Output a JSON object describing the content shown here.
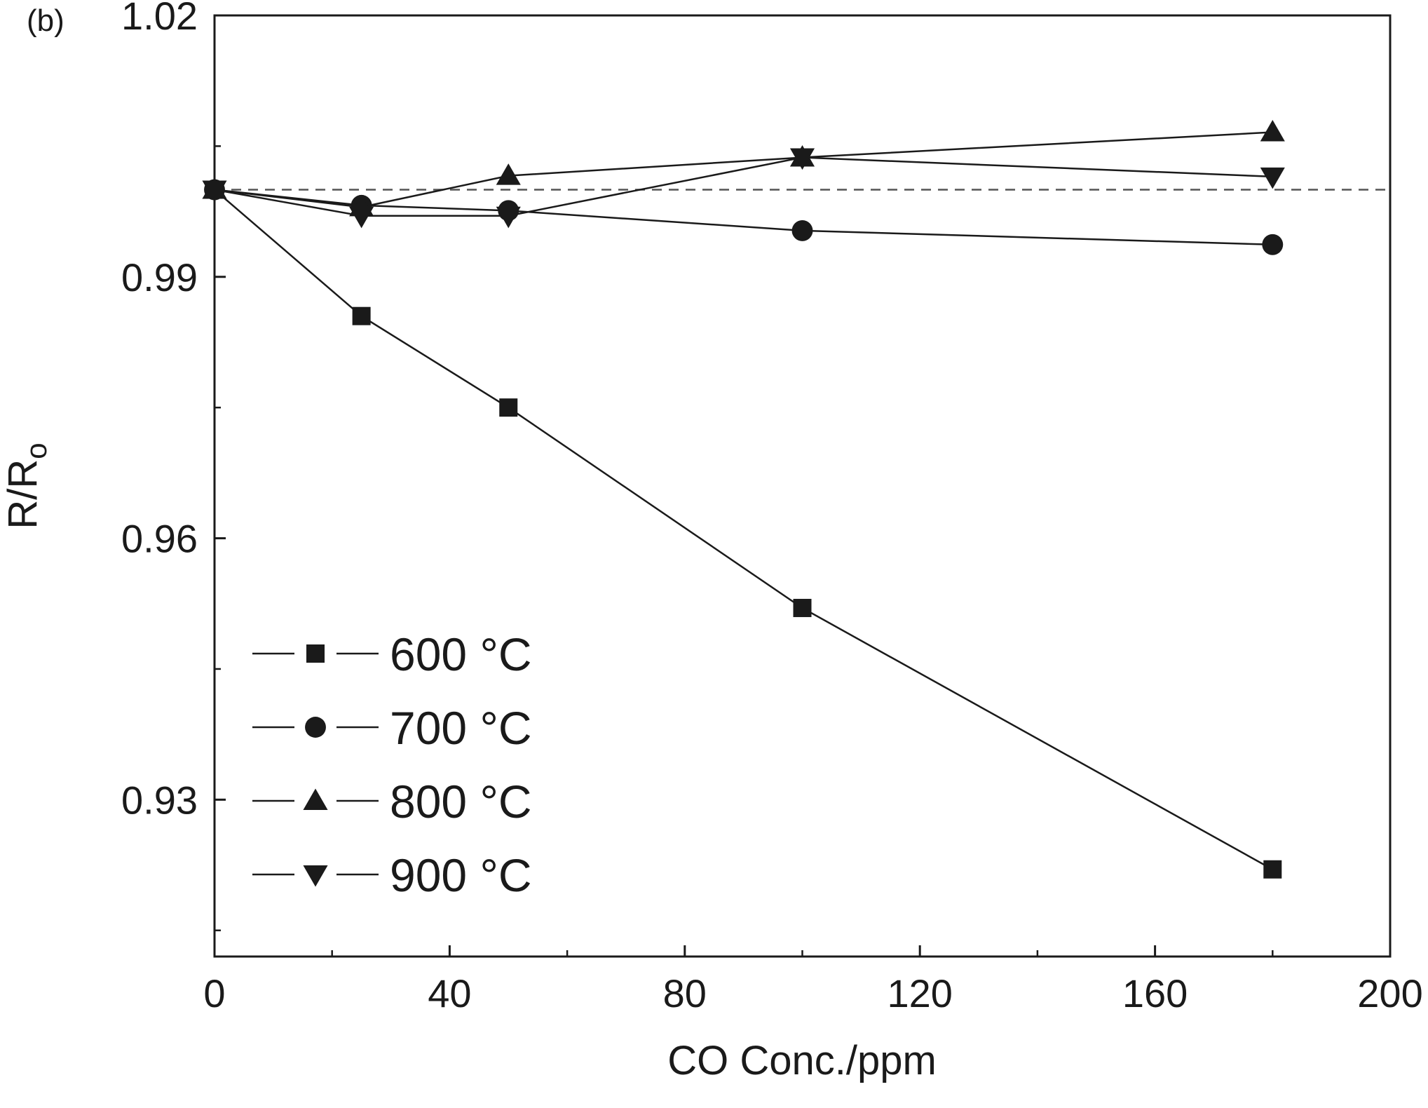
{
  "chart_data": {
    "type": "line",
    "panel_label": "(b)",
    "title": "",
    "xlabel": "CO Conc./ppm",
    "ylabel_main": "R/R",
    "ylabel_sub": "o",
    "xlim": [
      0,
      200
    ],
    "ylim": [
      0.912,
      1.02
    ],
    "x_major_ticks": [
      0,
      40,
      80,
      120,
      160,
      200
    ],
    "x_minor_ticks": [
      20,
      60,
      100,
      140,
      180
    ],
    "y_major_ticks": [
      0.93,
      0.96,
      0.99,
      1.02
    ],
    "y_minor_ticks": [
      0.915,
      0.945,
      0.975,
      1.005
    ],
    "x_tick_labels": [
      "0",
      "40",
      "80",
      "120",
      "160",
      "200"
    ],
    "y_tick_labels": [
      "0.93",
      "0.96",
      "0.99",
      "1.02"
    ],
    "reference_line": {
      "y": 1.0,
      "style": "dashed"
    },
    "grid": false,
    "legend_position": "bottom-left",
    "series": [
      {
        "name": "600",
        "unit": "°C",
        "marker": "square",
        "x": [
          0,
          25,
          50,
          100,
          180
        ],
        "y": [
          1.0,
          0.9855,
          0.975,
          0.952,
          0.922
        ]
      },
      {
        "name": "700",
        "unit": "°C",
        "marker": "circle",
        "x": [
          0,
          25,
          50,
          100,
          180
        ],
        "y": [
          1.0,
          0.9982,
          0.9976,
          0.9953,
          0.9937
        ]
      },
      {
        "name": "800",
        "unit": "°C",
        "marker": "triangle-up",
        "x": [
          0,
          25,
          50,
          100,
          180
        ],
        "y": [
          1.0,
          0.998,
          1.0016,
          1.0037,
          1.0066
        ]
      },
      {
        "name": "900",
        "unit": "°C",
        "marker": "triangle-down",
        "x": [
          0,
          25,
          50,
          100,
          180
        ],
        "y": [
          1.0,
          0.997,
          0.997,
          1.0037,
          1.0015
        ]
      }
    ]
  }
}
